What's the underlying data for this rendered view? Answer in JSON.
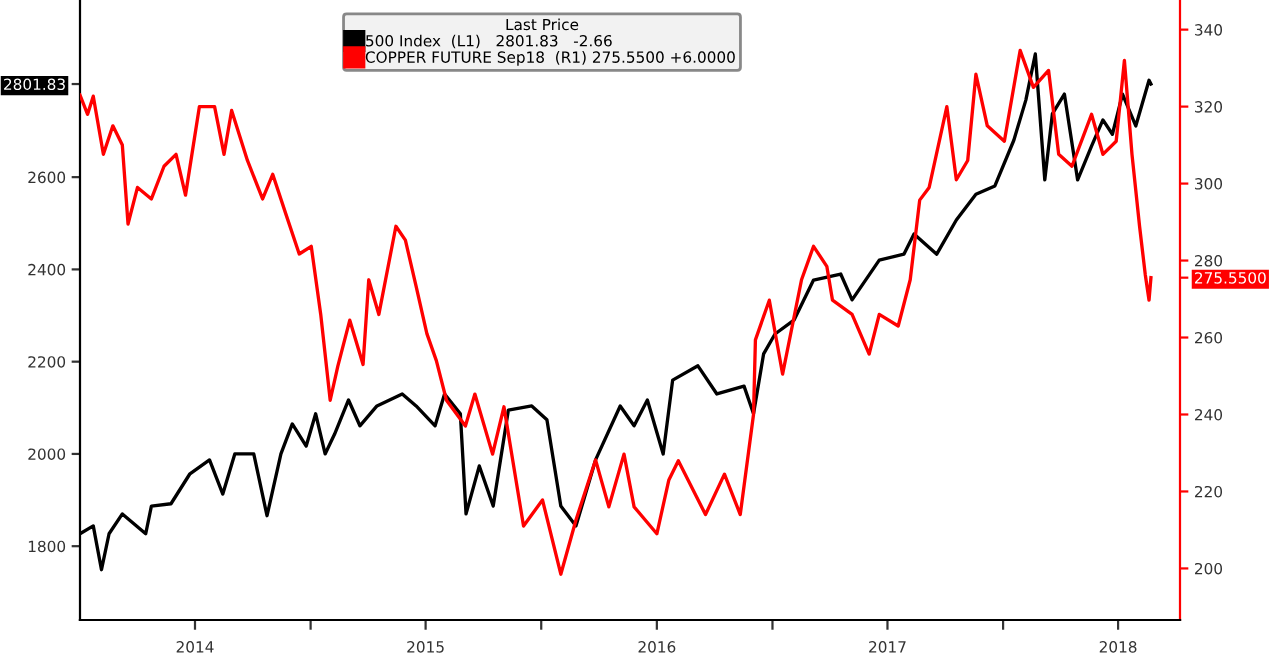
{
  "chart_data": {
    "type": "line",
    "legend_title": "Last Price",
    "legend": "top",
    "grid": false,
    "marker": "none",
    "line_style": "solid",
    "xlim": [
      "2014-01-01",
      "2018-10-08"
    ],
    "xticks": [
      {
        "value": "2014-07-02",
        "label": "2014"
      },
      {
        "value": "2015-01-01",
        "label": null
      },
      {
        "value": "2015-07-02",
        "label": "2015"
      },
      {
        "value": "2016-01-01",
        "label": null
      },
      {
        "value": "2016-07-02",
        "label": "2016"
      },
      {
        "value": "2017-01-01",
        "label": null
      },
      {
        "value": "2017-07-02",
        "label": "2017"
      },
      {
        "value": "2018-01-01",
        "label": null
      },
      {
        "value": "2018-07-02",
        "label": "2018"
      }
    ],
    "ylim": [
      1640,
      2984
    ],
    "yticks": [
      1800,
      2000,
      2200,
      2400,
      2600,
      2801.83
    ],
    "y2lim": [
      186.6,
      347.7
    ],
    "y2ticks": [
      200,
      220,
      240,
      260,
      280,
      300,
      320,
      340,
      {
        "value": 275.55,
        "label": "275.5500"
      }
    ],
    "series": [
      {
        "name": "500 Index  (L1)   2801.83   -2.66",
        "color": "#000000",
        "x": [
          "2014-01-01",
          "2014-01-22",
          "2014-02-04",
          "2014-02-16",
          "2014-03-09",
          "2014-04-15",
          "2014-04-24",
          "2014-05-25",
          "2014-06-24",
          "2014-07-25",
          "2014-08-15",
          "2014-09-03",
          "2014-10-03",
          "2014-10-24",
          "2014-11-15",
          "2014-12-03",
          "2014-12-25",
          "2015-01-09",
          "2015-01-24",
          "2015-02-08",
          "2015-03-02",
          "2015-03-20",
          "2015-04-16",
          "2015-05-26",
          "2015-06-17",
          "2015-07-17",
          "2015-08-01",
          "2015-08-26",
          "2015-09-04",
          "2015-09-25",
          "2015-10-17",
          "2015-11-10",
          "2015-12-17",
          "2016-01-10",
          "2016-02-01",
          "2016-02-25",
          "2016-03-27",
          "2016-05-05",
          "2016-05-27",
          "2016-06-17",
          "2016-07-12",
          "2016-07-27",
          "2016-09-05",
          "2016-10-05",
          "2016-11-17",
          "2016-12-02",
          "2016-12-18",
          "2017-01-05",
          "2017-02-04",
          "2017-03-07",
          "2017-04-19",
          "2017-05-07",
          "2017-06-19",
          "2017-07-28",
          "2017-08-13",
          "2017-09-18",
          "2017-10-19",
          "2017-11-19",
          "2017-12-19",
          "2018-01-18",
          "2018-02-06",
          "2018-02-21",
          "2018-03-08",
          "2018-03-20",
          "2018-04-08",
          "2018-04-29",
          "2018-05-21",
          "2018-06-08",
          "2018-06-23",
          "2018-07-09",
          "2018-07-30",
          "2018-08-20",
          "2018-08-23"
        ],
        "values": [
          1827,
          1844,
          1749,
          1827,
          1870,
          1827,
          1887,
          1892,
          1957,
          1987,
          1913,
          2000,
          2000,
          1866,
          2000,
          2065,
          2017,
          2087,
          2000,
          2043,
          2117,
          2061,
          2104,
          2130,
          2104,
          2061,
          2130,
          2087,
          1870,
          1974,
          1887,
          2095,
          2104,
          2074,
          1887,
          1844,
          1987,
          2104,
          2061,
          2117,
          2000,
          2160,
          2191,
          2130,
          2147,
          2087,
          2217,
          2260,
          2290,
          2377,
          2390,
          2334,
          2420,
          2433,
          2477,
          2433,
          2507,
          2563,
          2581,
          2680,
          2767,
          2867,
          2594,
          2737,
          2780,
          2594,
          2667,
          2724,
          2693,
          2780,
          2711,
          2810,
          2801.83
        ]
      },
      {
        "name": "COPPER FUTURE Sep18  (R1) 275.5500 +6.0000",
        "color": "#ff0000",
        "axis": "y2",
        "x": [
          "2014-01-01",
          "2014-01-13",
          "2014-01-22",
          "2014-02-07",
          "2014-02-22",
          "2014-03-09",
          "2014-03-18",
          "2014-04-02",
          "2014-04-24",
          "2014-05-14",
          "2014-06-02",
          "2014-06-17",
          "2014-07-09",
          "2014-08-02",
          "2014-08-17",
          "2014-08-29",
          "2014-09-23",
          "2014-10-17",
          "2014-11-02",
          "2014-11-23",
          "2014-12-14",
          "2015-01-02",
          "2015-01-17",
          "2015-02-01",
          "2015-02-13",
          "2015-03-04",
          "2015-03-25",
          "2015-04-03",
          "2015-04-19",
          "2015-05-16",
          "2015-05-31",
          "2015-06-17",
          "2015-07-04",
          "2015-07-19",
          "2015-08-04",
          "2015-09-03",
          "2015-09-18",
          "2015-10-16",
          "2015-11-03",
          "2015-12-04",
          "2016-01-03",
          "2016-02-01",
          "2016-02-25",
          "2016-03-27",
          "2016-04-17",
          "2016-05-11",
          "2016-05-27",
          "2016-07-02",
          "2016-07-21",
          "2016-08-05",
          "2016-09-17",
          "2016-10-17",
          "2016-11-11",
          "2016-12-02",
          "2016-12-05",
          "2016-12-27",
          "2017-01-17",
          "2017-02-16",
          "2017-03-07",
          "2017-03-28",
          "2017-04-06",
          "2017-05-07",
          "2017-06-03",
          "2017-06-19",
          "2017-07-19",
          "2017-08-07",
          "2017-08-22",
          "2017-09-06",
          "2017-10-04",
          "2017-10-19",
          "2017-11-06",
          "2017-11-19",
          "2017-12-07",
          "2018-01-03",
          "2018-01-28",
          "2018-02-18",
          "2018-03-14",
          "2018-03-30",
          "2018-04-20",
          "2018-05-21",
          "2018-06-08",
          "2018-06-29",
          "2018-07-12",
          "2018-07-24",
          "2018-08-05",
          "2018-08-14",
          "2018-08-20",
          "2018-08-23"
        ],
        "values": [
          323,
          318,
          322.7,
          307.6,
          315,
          310,
          289.5,
          299,
          296,
          304.5,
          307.6,
          297,
          320,
          320,
          307.6,
          319,
          306,
          296,
          302.4,
          292,
          281.7,
          283.7,
          266,
          243.7,
          252.5,
          264.5,
          253,
          275,
          266,
          288.9,
          285.3,
          273.3,
          261,
          254,
          243.7,
          237,
          245.3,
          229.7,
          242,
          211,
          217.8,
          198.5,
          212.6,
          228.2,
          216,
          229.7,
          216,
          209,
          223,
          228,
          214,
          224.5,
          214,
          240,
          259.4,
          269.7,
          250.5,
          275,
          283.7,
          278.5,
          269.7,
          266,
          255.7,
          266,
          263,
          275,
          295.7,
          299,
          320,
          301,
          306,
          328.4,
          315,
          311,
          334.6,
          325,
          329.4,
          307.6,
          304.5,
          318,
          307.6,
          311,
          332,
          307.6,
          288.9,
          276.4,
          269.7,
          275.55
        ]
      }
    ]
  }
}
